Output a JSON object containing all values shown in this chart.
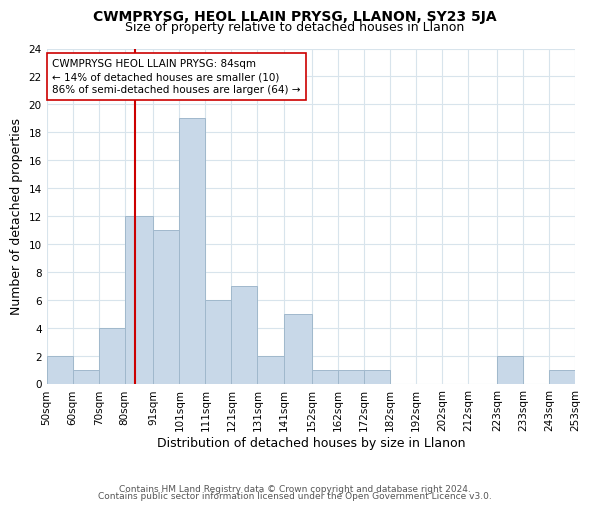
{
  "title": "CWMPRYSG, HEOL LLAIN PRYSG, LLANON, SY23 5JA",
  "subtitle": "Size of property relative to detached houses in Llanon",
  "xlabel": "Distribution of detached houses by size in Llanon",
  "ylabel": "Number of detached properties",
  "bar_color": "#c8d8e8",
  "bar_edge_color": "#a0b8cc",
  "grid_color": "#d8e4ec",
  "bins": [
    50,
    60,
    70,
    80,
    91,
    101,
    111,
    121,
    131,
    141,
    152,
    162,
    172,
    182,
    192,
    202,
    212,
    223,
    233,
    243,
    253
  ],
  "bar_heights": [
    2,
    1,
    4,
    12,
    11,
    19,
    6,
    7,
    2,
    5,
    1,
    1,
    1,
    0,
    0,
    0,
    0,
    2,
    0,
    1
  ],
  "bin_labels": [
    "50sqm",
    "60sqm",
    "70sqm",
    "80sqm",
    "91sqm",
    "101sqm",
    "111sqm",
    "121sqm",
    "131sqm",
    "141sqm",
    "152sqm",
    "162sqm",
    "172sqm",
    "182sqm",
    "192sqm",
    "202sqm",
    "212sqm",
    "223sqm",
    "233sqm",
    "243sqm",
    "253sqm"
  ],
  "vline_x": 84,
  "vline_color": "#cc0000",
  "ylim": [
    0,
    24
  ],
  "yticks": [
    0,
    2,
    4,
    6,
    8,
    10,
    12,
    14,
    16,
    18,
    20,
    22,
    24
  ],
  "annotation_line1": "CWMPRYSG HEOL LLAIN PRYSG: 84sqm",
  "annotation_line2": "← 14% of detached houses are smaller (10)",
  "annotation_line3": "86% of semi-detached houses are larger (64) →",
  "annotation_box_color": "#ffffff",
  "annotation_box_edge": "#cc0000",
  "footer_line1": "Contains HM Land Registry data © Crown copyright and database right 2024.",
  "footer_line2": "Contains public sector information licensed under the Open Government Licence v3.0.",
  "title_fontsize": 10,
  "subtitle_fontsize": 9,
  "axis_label_fontsize": 9,
  "tick_fontsize": 7.5,
  "annotation_fontsize": 7.5,
  "footer_fontsize": 6.5
}
